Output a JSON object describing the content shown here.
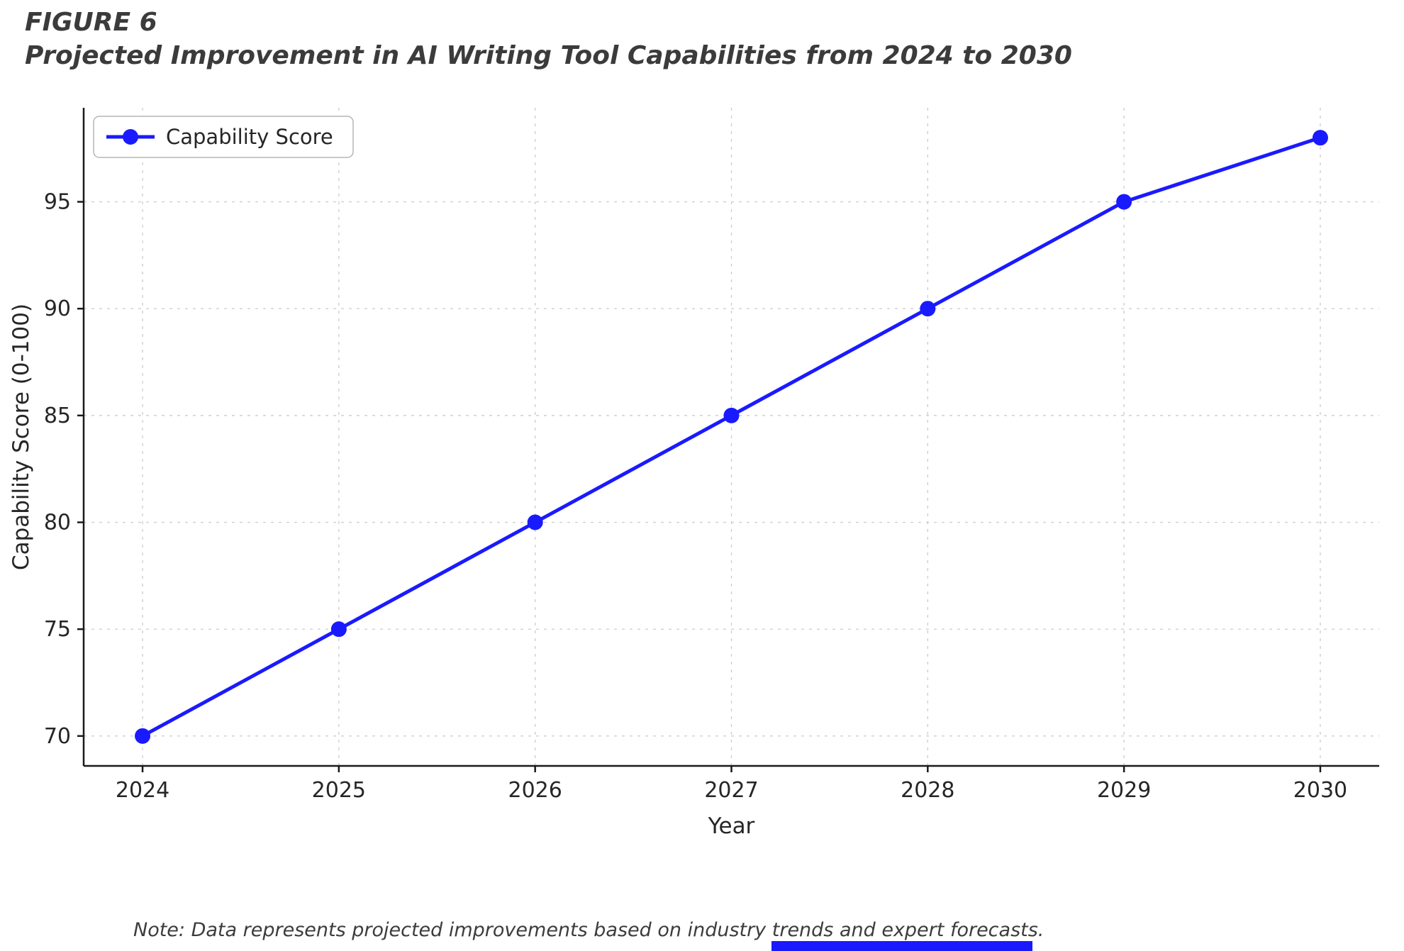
{
  "figure": {
    "label": "FIGURE 6",
    "note": "Note: Data represents projected improvements based on industry trends and expert forecasts."
  },
  "colors": {
    "accent": "#1a1aff",
    "grid": "#cfcfcf",
    "text": "#262626"
  },
  "chart_data": {
    "type": "line",
    "title": "Projected Improvement in AI Writing Tool Capabilities from 2024 to 2030",
    "x": [
      2024,
      2025,
      2026,
      2027,
      2028,
      2029,
      2030
    ],
    "x_tick_labels": [
      "2024",
      "2025",
      "2026",
      "2027",
      "2028",
      "2029",
      "2030"
    ],
    "series": [
      {
        "name": "Capability Score",
        "values": [
          70,
          75,
          80,
          85,
          90,
          95,
          98
        ]
      }
    ],
    "xlabel": "Year",
    "ylabel": "Capability Score (0-100)",
    "xlim": [
      2023.7,
      2030.3
    ],
    "ylim": [
      68.6,
      99.4
    ],
    "yticks": [
      70,
      75,
      80,
      85,
      90,
      95
    ],
    "grid": true,
    "grid_style": "dashed",
    "legend_position": "upper left",
    "marker": "circle"
  }
}
